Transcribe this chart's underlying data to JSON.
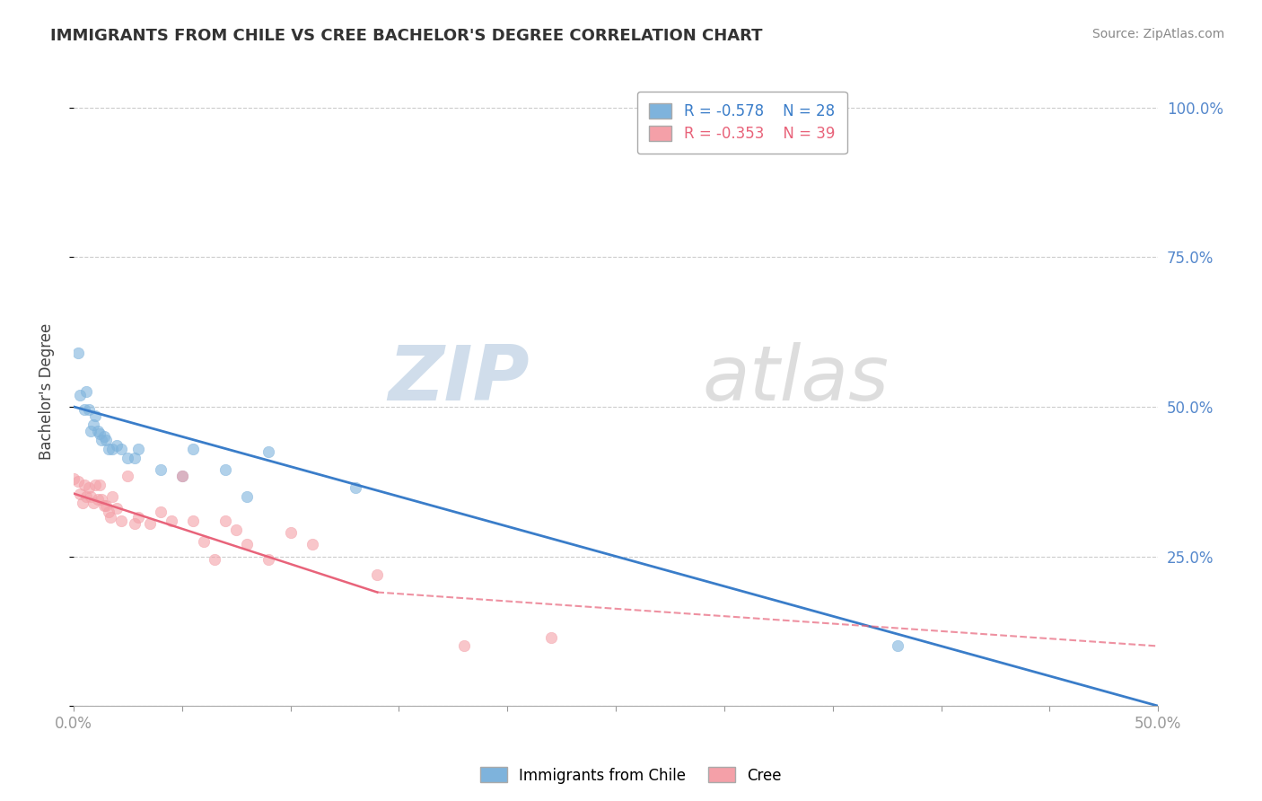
{
  "title": "IMMIGRANTS FROM CHILE VS CREE BACHELOR'S DEGREE CORRELATION CHART",
  "source": "Source: ZipAtlas.com",
  "ylabel": "Bachelor's Degree",
  "legend_chile": "Immigrants from Chile",
  "legend_cree": "Cree",
  "legend_r_chile": "R = -0.578",
  "legend_n_chile": "N = 28",
  "legend_r_cree": "R = -0.353",
  "legend_n_cree": "N = 39",
  "color_chile": "#7EB3DC",
  "color_cree": "#F4A0A8",
  "color_chile_line": "#3A7DC9",
  "color_cree_line": "#E8637A",
  "background_color": "#FFFFFF",
  "chile_points_x": [
    0.002,
    0.003,
    0.005,
    0.006,
    0.007,
    0.008,
    0.009,
    0.01,
    0.011,
    0.012,
    0.013,
    0.014,
    0.015,
    0.016,
    0.018,
    0.02,
    0.022,
    0.025,
    0.028,
    0.03,
    0.04,
    0.05,
    0.055,
    0.07,
    0.08,
    0.09,
    0.13,
    0.38
  ],
  "chile_points_y": [
    0.59,
    0.52,
    0.495,
    0.525,
    0.495,
    0.46,
    0.47,
    0.485,
    0.46,
    0.455,
    0.445,
    0.45,
    0.445,
    0.43,
    0.43,
    0.435,
    0.43,
    0.415,
    0.415,
    0.43,
    0.395,
    0.385,
    0.43,
    0.395,
    0.35,
    0.425,
    0.365,
    0.1
  ],
  "cree_points_x": [
    0.0,
    0.002,
    0.003,
    0.004,
    0.005,
    0.006,
    0.007,
    0.008,
    0.009,
    0.01,
    0.011,
    0.012,
    0.013,
    0.014,
    0.015,
    0.016,
    0.017,
    0.018,
    0.02,
    0.022,
    0.025,
    0.028,
    0.03,
    0.035,
    0.04,
    0.045,
    0.05,
    0.055,
    0.06,
    0.065,
    0.07,
    0.075,
    0.08,
    0.09,
    0.1,
    0.11,
    0.14,
    0.18,
    0.22
  ],
  "cree_points_y": [
    0.38,
    0.375,
    0.355,
    0.34,
    0.37,
    0.35,
    0.365,
    0.35,
    0.34,
    0.37,
    0.345,
    0.37,
    0.345,
    0.335,
    0.335,
    0.325,
    0.315,
    0.35,
    0.33,
    0.31,
    0.385,
    0.305,
    0.315,
    0.305,
    0.325,
    0.31,
    0.385,
    0.31,
    0.275,
    0.245,
    0.31,
    0.295,
    0.27,
    0.245,
    0.29,
    0.27,
    0.22,
    0.1,
    0.115
  ],
  "chile_line_x0": 0.0,
  "chile_line_y0": 0.5,
  "chile_line_x1": 0.5,
  "chile_line_y1": 0.0,
  "cree_line_solid_x0": 0.0,
  "cree_line_solid_y0": 0.355,
  "cree_line_solid_x1": 0.14,
  "cree_line_solid_y1": 0.19,
  "cree_line_dash_x0": 0.14,
  "cree_line_dash_y0": 0.19,
  "cree_line_dash_x1": 0.5,
  "cree_line_dash_y1": 0.1,
  "xlim": [
    0.0,
    0.5
  ],
  "ylim": [
    0.0,
    1.05
  ],
  "yticks": [
    0.0,
    0.25,
    0.5,
    0.75,
    1.0
  ],
  "ytick_labels_right": [
    "",
    "25.0%",
    "50.0%",
    "75.0%",
    "100.0%"
  ]
}
